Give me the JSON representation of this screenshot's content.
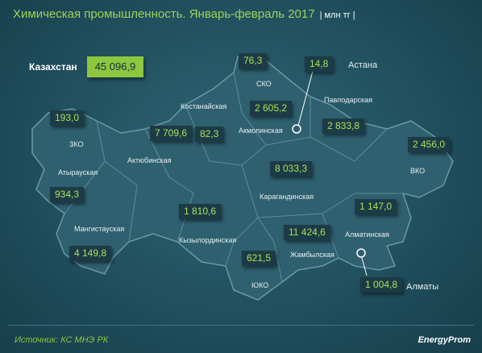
{
  "header": {
    "title": "Химическая промышленность. Январь-февраль 2017",
    "unit": "| млн тг |"
  },
  "total": {
    "label": "Казахстан",
    "value": "45 096,9"
  },
  "regions": [
    {
      "name": "ЗКО",
      "value": "193,0"
    },
    {
      "name": "Атырауская",
      "value": "934,3"
    },
    {
      "name": "Мангистауская",
      "value": "4 149,8"
    },
    {
      "name": "Актюбинская",
      "value": "7 709,6"
    },
    {
      "name": "Костанайская",
      "value": "82,3"
    },
    {
      "name": "СКО",
      "value": "76,3"
    },
    {
      "name": "Акмолинская",
      "value": "2 605,2"
    },
    {
      "name": "Астана",
      "value": "14,8"
    },
    {
      "name": "Павлодарская",
      "value": "2 833,8"
    },
    {
      "name": "ВКО",
      "value": "2 456,0"
    },
    {
      "name": "Карагандинская",
      "value": "8 033,3"
    },
    {
      "name": "Кызылординская",
      "value": "1 810,6"
    },
    {
      "name": "Жамбылская",
      "value": "11 424,6"
    },
    {
      "name": "Алматинская",
      "value": "1 147,0"
    },
    {
      "name": "ЮКО",
      "value": "621,5"
    },
    {
      "name": "Алматы",
      "value": "1 004,8"
    }
  ],
  "footer": {
    "source": "Источник: КС МНЭ РК",
    "brand": "EnergyProm"
  }
}
